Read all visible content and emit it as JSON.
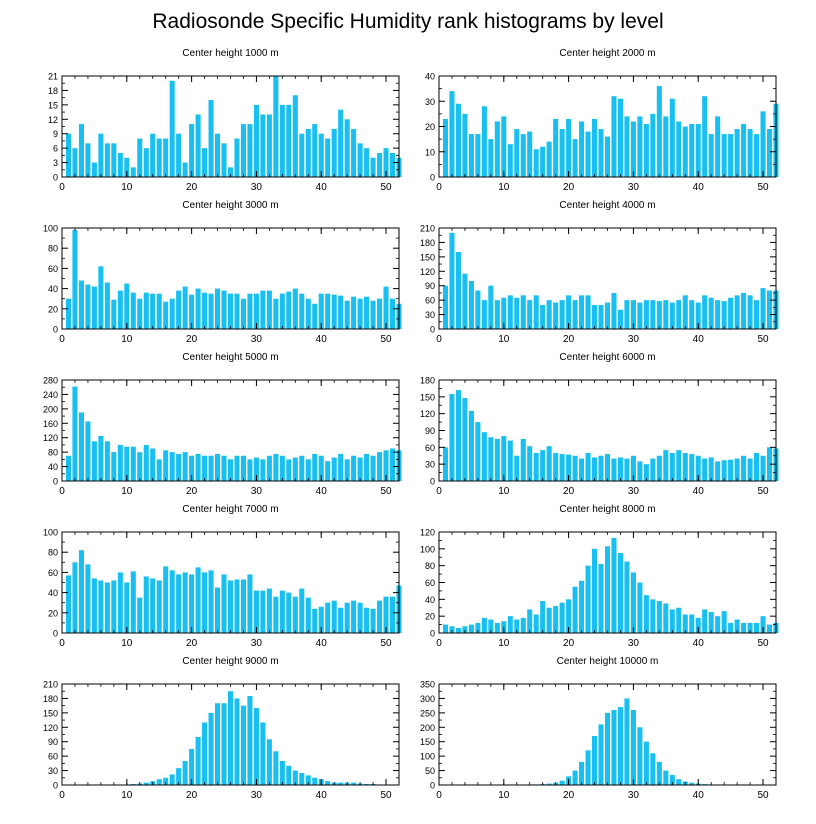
{
  "title": "Radiosonde Specific Humidity rank histograms by level",
  "colors": {
    "bar": "#18bff0",
    "axis": "#000000"
  },
  "chart_data": [
    {
      "type": "bar",
      "title": "Center height 1000 m",
      "xlim": [
        0,
        52
      ],
      "ylim": [
        0,
        21
      ],
      "xticks": [
        0,
        10,
        20,
        30,
        40,
        50
      ],
      "yticks": [
        0,
        3,
        6,
        9,
        12,
        15,
        18,
        21
      ],
      "values": [
        9,
        6,
        11,
        7,
        3,
        9,
        7,
        7,
        5,
        4,
        2,
        8,
        6,
        9,
        8,
        8,
        20,
        9,
        3,
        11,
        13,
        6,
        16,
        9,
        7,
        2,
        8,
        11,
        11,
        15,
        13,
        13,
        21,
        15,
        15,
        17,
        9,
        10,
        11,
        9,
        8,
        10,
        14,
        12,
        10,
        7,
        6,
        4,
        5,
        6,
        5,
        4
      ]
    },
    {
      "type": "bar",
      "title": "Center height 2000 m",
      "xlim": [
        0,
        52
      ],
      "ylim": [
        0,
        40
      ],
      "xticks": [
        0,
        10,
        20,
        30,
        40,
        50
      ],
      "yticks": [
        0,
        10,
        20,
        30,
        40
      ],
      "values": [
        23,
        34,
        29,
        25,
        17,
        17,
        28,
        15,
        22,
        24,
        13,
        19,
        17,
        18,
        11,
        12,
        14,
        23,
        19,
        23,
        15,
        22,
        18,
        23,
        19,
        16,
        32,
        31,
        24,
        22,
        24,
        21,
        25,
        36,
        24,
        31,
        22,
        20,
        21,
        21,
        32,
        17,
        24,
        17,
        17,
        19,
        21,
        19,
        17,
        26,
        19,
        29
      ]
    },
    {
      "type": "bar",
      "title": "Center height 3000 m",
      "xlim": [
        0,
        52
      ],
      "ylim": [
        0,
        100
      ],
      "xticks": [
        0,
        10,
        20,
        30,
        40,
        50
      ],
      "yticks": [
        0,
        20,
        40,
        60,
        80,
        100
      ],
      "values": [
        30,
        98,
        48,
        44,
        42,
        62,
        46,
        29,
        38,
        45,
        36,
        30,
        36,
        35,
        35,
        27,
        30,
        38,
        42,
        34,
        40,
        36,
        35,
        40,
        38,
        35,
        35,
        30,
        35,
        35,
        38,
        38,
        30,
        35,
        37,
        40,
        35,
        30,
        25,
        35,
        35,
        34,
        33,
        28,
        32,
        30,
        32,
        28,
        30,
        42,
        30,
        25
      ]
    },
    {
      "type": "bar",
      "title": "Center height 4000 m",
      "xlim": [
        0,
        52
      ],
      "ylim": [
        0,
        210
      ],
      "xticks": [
        0,
        10,
        20,
        30,
        40,
        50
      ],
      "yticks": [
        0,
        30,
        60,
        90,
        120,
        150,
        180,
        210
      ],
      "values": [
        90,
        200,
        160,
        115,
        100,
        80,
        60,
        90,
        60,
        65,
        70,
        65,
        70,
        60,
        70,
        50,
        60,
        55,
        60,
        70,
        60,
        70,
        70,
        50,
        50,
        55,
        75,
        40,
        60,
        60,
        55,
        60,
        60,
        58,
        60,
        55,
        60,
        70,
        60,
        55,
        70,
        65,
        60,
        58,
        65,
        70,
        75,
        70,
        60,
        85,
        80,
        80
      ]
    },
    {
      "type": "bar",
      "title": "Center height 5000 m",
      "xlim": [
        0,
        52
      ],
      "ylim": [
        0,
        280
      ],
      "xticks": [
        0,
        10,
        20,
        30,
        40,
        50
      ],
      "yticks": [
        0,
        40,
        80,
        120,
        160,
        200,
        240,
        280
      ],
      "values": [
        70,
        262,
        190,
        165,
        110,
        125,
        110,
        80,
        100,
        95,
        95,
        80,
        100,
        90,
        60,
        85,
        80,
        75,
        80,
        70,
        75,
        70,
        70,
        75,
        70,
        60,
        70,
        70,
        60,
        65,
        60,
        70,
        75,
        70,
        60,
        65,
        70,
        60,
        75,
        70,
        55,
        65,
        75,
        60,
        70,
        65,
        75,
        70,
        80,
        85,
        90,
        85
      ]
    },
    {
      "type": "bar",
      "title": "Center height 6000 m",
      "xlim": [
        0,
        52
      ],
      "ylim": [
        0,
        180
      ],
      "xticks": [
        0,
        10,
        20,
        30,
        40,
        50
      ],
      "yticks": [
        0,
        30,
        60,
        90,
        120,
        150,
        180
      ],
      "values": [
        60,
        155,
        162,
        148,
        125,
        105,
        87,
        78,
        75,
        80,
        72,
        45,
        75,
        62,
        50,
        55,
        62,
        50,
        48,
        47,
        45,
        40,
        50,
        42,
        45,
        48,
        40,
        42,
        40,
        45,
        35,
        30,
        40,
        45,
        55,
        50,
        55,
        50,
        48,
        45,
        40,
        42,
        35,
        37,
        38,
        40,
        45,
        40,
        50,
        45,
        60,
        58
      ]
    },
    {
      "type": "bar",
      "title": "Center height 7000 m",
      "xlim": [
        0,
        52
      ],
      "ylim": [
        0,
        100
      ],
      "xticks": [
        0,
        10,
        20,
        30,
        40,
        50
      ],
      "yticks": [
        0,
        20,
        40,
        60,
        80,
        100
      ],
      "values": [
        57,
        70,
        82,
        68,
        54,
        52,
        50,
        52,
        60,
        50,
        61,
        35,
        56,
        54,
        52,
        66,
        62,
        58,
        60,
        58,
        65,
        60,
        62,
        45,
        58,
        52,
        53,
        53,
        58,
        42,
        42,
        44,
        36,
        42,
        40,
        36,
        44,
        35,
        24,
        26,
        30,
        32,
        25,
        30,
        32,
        30,
        25,
        24,
        32,
        36,
        36,
        47
      ]
    },
    {
      "type": "bar",
      "title": "Center height 8000 m",
      "xlim": [
        0,
        52
      ],
      "ylim": [
        0,
        120
      ],
      "xticks": [
        0,
        10,
        20,
        30,
        40,
        50
      ],
      "yticks": [
        0,
        20,
        40,
        60,
        80,
        100,
        120
      ],
      "values": [
        10,
        8,
        6,
        8,
        10,
        12,
        18,
        16,
        12,
        14,
        20,
        16,
        18,
        28,
        22,
        38,
        30,
        32,
        36,
        40,
        55,
        62,
        80,
        100,
        82,
        103,
        113,
        95,
        85,
        72,
        60,
        45,
        40,
        38,
        35,
        28,
        30,
        22,
        22,
        18,
        28,
        25,
        20,
        26,
        12,
        16,
        12,
        12,
        12,
        20,
        10,
        12
      ]
    },
    {
      "type": "bar",
      "title": "Center height 9000 m",
      "xlim": [
        0,
        52
      ],
      "ylim": [
        0,
        210
      ],
      "xticks": [
        0,
        10,
        20,
        30,
        40,
        50
      ],
      "yticks": [
        0,
        30,
        60,
        90,
        120,
        150,
        180,
        210
      ],
      "values": [
        0,
        0,
        0,
        0,
        0,
        0,
        0,
        0,
        0,
        1,
        2,
        3,
        5,
        8,
        12,
        15,
        22,
        35,
        50,
        75,
        100,
        130,
        150,
        170,
        170,
        195,
        180,
        165,
        185,
        160,
        130,
        95,
        70,
        50,
        40,
        30,
        25,
        20,
        15,
        12,
        8,
        5,
        5,
        5,
        5,
        3,
        2,
        2,
        1,
        1,
        1,
        0
      ]
    },
    {
      "type": "bar",
      "title": "Center height 10000 m",
      "xlim": [
        0,
        52
      ],
      "ylim": [
        0,
        350
      ],
      "xticks": [
        0,
        10,
        20,
        30,
        40,
        50
      ],
      "yticks": [
        0,
        50,
        100,
        150,
        200,
        250,
        300,
        350
      ],
      "values": [
        0,
        0,
        0,
        0,
        0,
        0,
        0,
        0,
        0,
        0,
        0,
        0,
        1,
        1,
        2,
        3,
        5,
        8,
        15,
        30,
        50,
        80,
        120,
        170,
        210,
        250,
        260,
        270,
        300,
        260,
        200,
        150,
        110,
        80,
        50,
        35,
        20,
        12,
        8,
        5,
        3,
        2,
        1,
        1,
        1,
        0,
        0,
        0,
        0,
        0,
        0,
        0
      ]
    }
  ]
}
